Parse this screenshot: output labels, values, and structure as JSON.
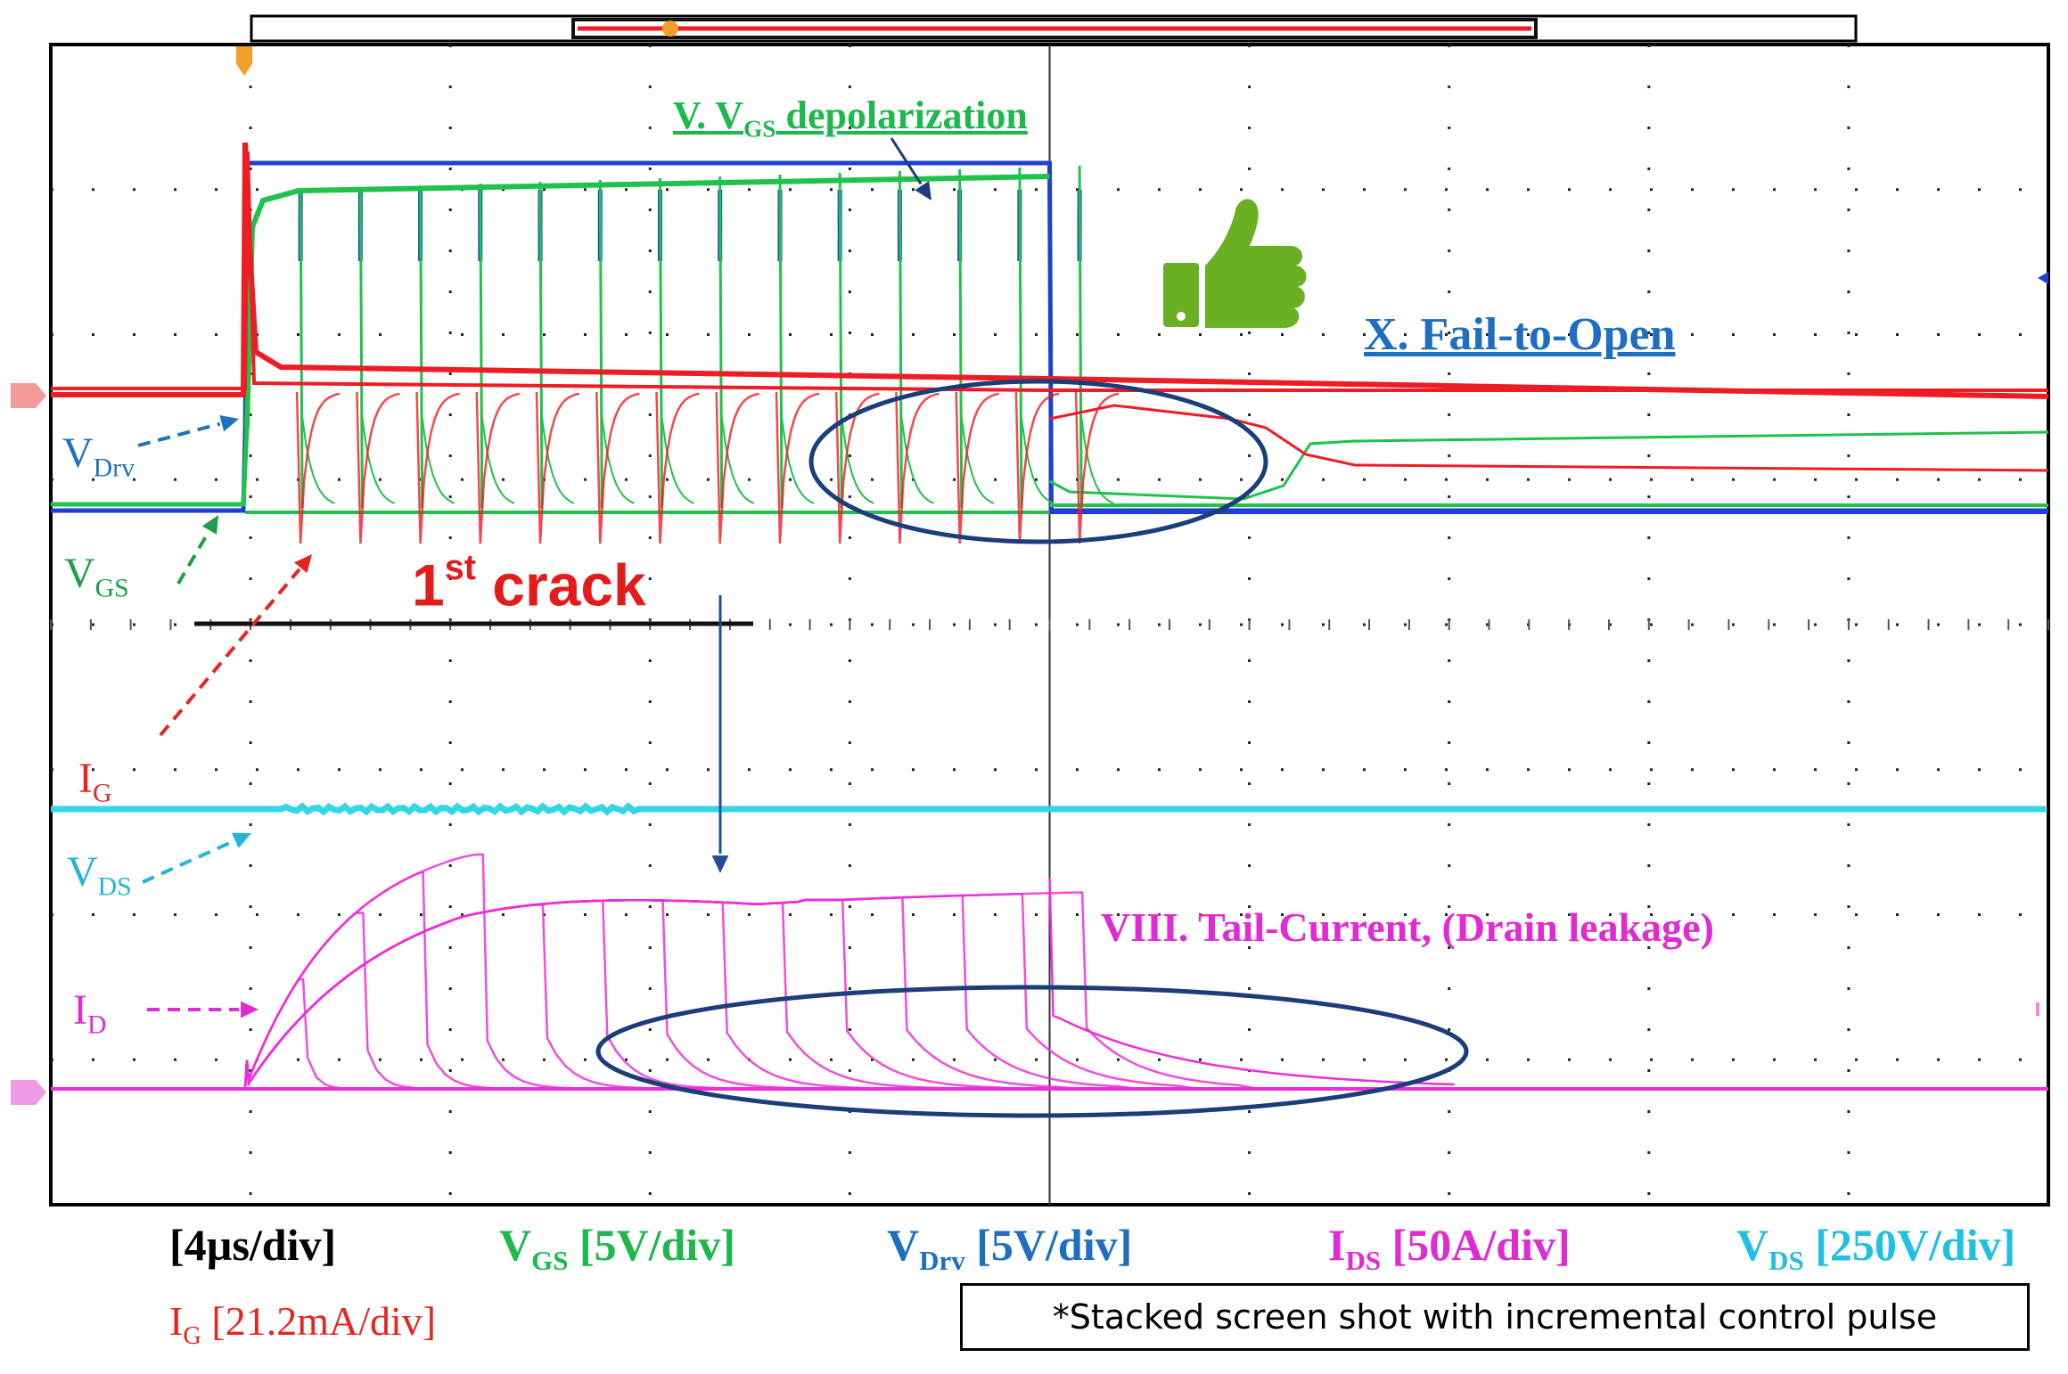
{
  "labels": {
    "vdrv": {
      "main": "V",
      "sub": "Drv"
    },
    "vgs": {
      "main": "V",
      "sub": "GS"
    },
    "ig": {
      "main": "I",
      "sub": "G"
    },
    "vds": {
      "main": "V",
      "sub": "DS"
    },
    "id": {
      "main": "I",
      "sub": "D"
    },
    "first_crack": {
      "pre": "1",
      "sup": "st",
      "post": " crack"
    },
    "depolarization": {
      "pre": "V. V",
      "sub": "GS",
      "post": " depolarization"
    },
    "fail_to_open": "X. Fail-to-Open",
    "tail_current": "VIII.  Tail-Current, (Drain leakage)"
  },
  "scales": {
    "time": "[4µs/div]",
    "vgs": {
      "main": "V",
      "sub": "GS",
      "rest": " [5V/div]"
    },
    "vdrv": {
      "main": "V",
      "sub": "Drv",
      "rest": " [5V/div]"
    },
    "ids": {
      "main": "I",
      "sub": "DS",
      "rest": " [50A/div]"
    },
    "vds": {
      "main": "V",
      "sub": "DS",
      "rest": " [250V/div]"
    },
    "ig": {
      "main": "I",
      "sub": "G",
      "rest": " [21.2mA/div]"
    }
  },
  "note": "*Stacked screen shot with incremental control pulse",
  "colors": {
    "vdrv": "#1f3fd0",
    "vgs": "#1fc24a",
    "ig": "#ee1c24",
    "vds": "#33d6e6",
    "id": "#ee2ed8",
    "annotation_blue": "#1b3d7a",
    "label_blue": "#1e73be",
    "thumb": "#6ab023"
  },
  "icons": [
    "thumbs-up-icon",
    "trigger-marker-icon"
  ],
  "chart_data": {
    "type": "line",
    "title": "",
    "xlabel": "[4µs/div]",
    "ylabel": "",
    "grid": true,
    "time_per_div_us": 4,
    "pulse_count": 14,
    "pulse_start_div": 1,
    "pulse_end_div_first": 1.25,
    "pulse_step_div": 0.3,
    "series": [
      {
        "name": "VDrv",
        "scale": "5V/div",
        "low_div": -1.0,
        "high_div": 2.0
      },
      {
        "name": "VGS",
        "scale": "5V/div",
        "low_div": -1.0,
        "high_div": 1.8
      },
      {
        "name": "IG",
        "scale": "21.2mA/div",
        "baseline_div": 0.0,
        "peak_div": 2.2
      },
      {
        "name": "VDS",
        "scale": "250V/div",
        "level_div": -3.6
      },
      {
        "name": "ID",
        "scale": "50A/div",
        "peak_div": 2.3
      }
    ]
  }
}
